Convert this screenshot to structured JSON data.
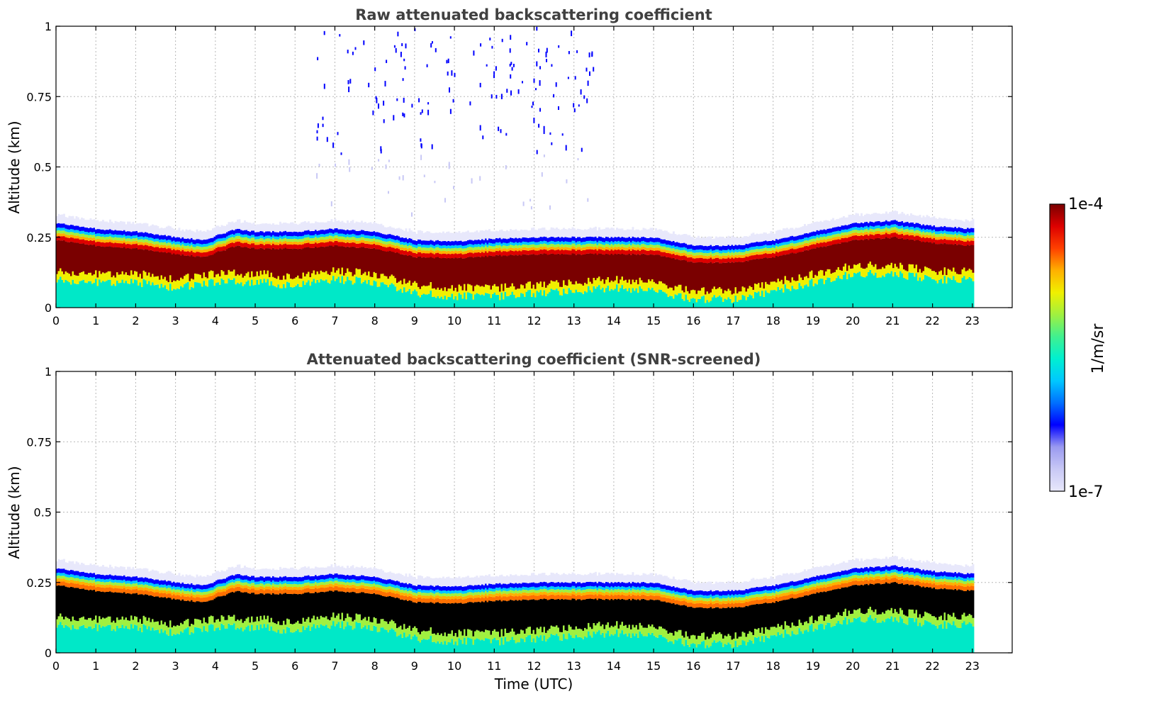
{
  "chart_data": [
    {
      "type": "heatmap",
      "title": "Raw attenuated backscattering coefficient",
      "xlabel": "",
      "ylabel": "Altitude (km)",
      "xlim": [
        0,
        24
      ],
      "ylim": [
        0,
        1
      ],
      "x_ticks": [
        "0",
        "1",
        "2",
        "3",
        "4",
        "5",
        "6",
        "7",
        "8",
        "9",
        "10",
        "11",
        "12",
        "13",
        "14",
        "15",
        "16",
        "17",
        "18",
        "19",
        "20",
        "21",
        "22",
        "23"
      ],
      "y_ticks": [
        "0",
        "0.25",
        "0.5",
        "0.75",
        "1"
      ],
      "grid": true,
      "data_time_range_utc": [
        0,
        23
      ],
      "boundary_layer_top_km": [
        [
          0,
          0.3
        ],
        [
          1,
          0.28
        ],
        [
          2,
          0.27
        ],
        [
          3,
          0.25
        ],
        [
          3.7,
          0.24
        ],
        [
          4.5,
          0.28
        ],
        [
          5,
          0.27
        ],
        [
          6,
          0.27
        ],
        [
          7,
          0.28
        ],
        [
          8,
          0.27
        ],
        [
          9,
          0.24
        ],
        [
          10,
          0.235
        ],
        [
          11,
          0.245
        ],
        [
          12,
          0.25
        ],
        [
          13,
          0.25
        ],
        [
          14,
          0.25
        ],
        [
          15,
          0.25
        ],
        [
          16,
          0.22
        ],
        [
          17,
          0.22
        ],
        [
          18,
          0.24
        ],
        [
          19,
          0.27
        ],
        [
          20,
          0.3
        ],
        [
          21,
          0.31
        ],
        [
          22,
          0.29
        ],
        [
          23,
          0.28
        ]
      ],
      "saturation_bottom_km": [
        [
          0,
          0.13
        ],
        [
          1,
          0.12
        ],
        [
          2,
          0.12
        ],
        [
          3,
          0.1
        ],
        [
          4,
          0.12
        ],
        [
          5,
          0.12
        ],
        [
          6,
          0.11
        ],
        [
          7,
          0.13
        ],
        [
          8,
          0.12
        ],
        [
          9,
          0.08
        ],
        [
          10,
          0.07
        ],
        [
          11,
          0.07
        ],
        [
          12,
          0.08
        ],
        [
          13,
          0.09
        ],
        [
          14,
          0.1
        ],
        [
          15,
          0.09
        ],
        [
          16,
          0.06
        ],
        [
          17,
          0.06
        ],
        [
          18,
          0.09
        ],
        [
          19,
          0.12
        ],
        [
          20,
          0.15
        ],
        [
          21,
          0.15
        ],
        [
          22,
          0.13
        ],
        [
          23,
          0.13
        ]
      ],
      "sparse_signal_region": {
        "x_range": [
          6.5,
          13.5
        ],
        "y_range": [
          0.3,
          1.0
        ]
      }
    },
    {
      "type": "heatmap",
      "title": "Attenuated backscattering coefficient (SNR-screened)",
      "xlabel": "Time (UTC)",
      "ylabel": "Altitude (km)",
      "xlim": [
        0,
        24
      ],
      "ylim": [
        0,
        1
      ],
      "x_ticks": [
        "0",
        "1",
        "2",
        "3",
        "4",
        "5",
        "6",
        "7",
        "8",
        "9",
        "10",
        "11",
        "12",
        "13",
        "14",
        "15",
        "16",
        "17",
        "18",
        "19",
        "20",
        "21",
        "22",
        "23"
      ],
      "y_ticks": [
        "0",
        "0.25",
        "0.5",
        "0.75",
        "1"
      ],
      "grid": true,
      "data_time_range_utc": [
        0,
        23
      ],
      "screened_region_color": "#000000"
    }
  ],
  "colorbar": {
    "label": "1/m/sr",
    "max_label": "1e-4",
    "min_label": "1e-7",
    "scale": "log",
    "range": [
      1e-07,
      0.0001
    ],
    "colormap": [
      "#e8e8fb",
      "#c8c8f5",
      "#9a9af0",
      "#0000ff",
      "#0070ff",
      "#00c8ff",
      "#00f0d0",
      "#40f090",
      "#a0f040",
      "#f0f000",
      "#ffb000",
      "#ff4000",
      "#dd0000",
      "#7a0000"
    ]
  },
  "colors": {
    "saturated": "#7a0000",
    "screened": "#000000",
    "aerosol_core": "#dd0000",
    "edge": "#0000ff",
    "haze": "#e8e8fb",
    "low_signal": "#00e8c8"
  }
}
